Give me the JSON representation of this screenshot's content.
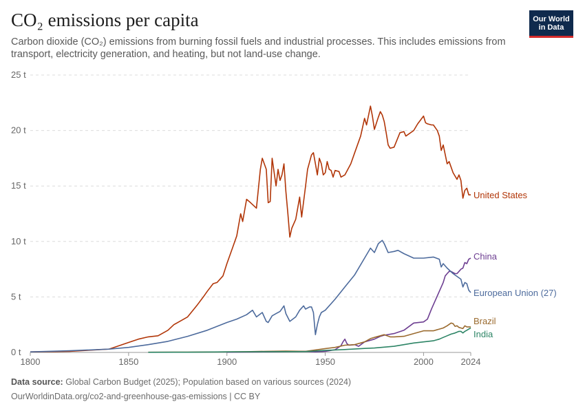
{
  "header": {
    "title": "CO₂ emissions per capita",
    "subtitle": "Carbon dioxide (CO₂) emissions from burning fossil fuels and industrial processes. This includes emissions from transport, electricity generation, and heating, but not land-use change.",
    "logo_line1": "Our World",
    "logo_line2": "in Data"
  },
  "footer": {
    "source_label": "Data source:",
    "source_text": "Global Carbon Budget (2025); Population based on various sources (2024)",
    "url": "OurWorldinData.org/co2-and-greenhouse-gas-emissions",
    "license": "| CC BY"
  },
  "chart_data": {
    "type": "line",
    "title": "CO₂ emissions per capita",
    "xlabel": "",
    "ylabel": "",
    "xlim": [
      1800,
      2024
    ],
    "ylim": [
      0,
      25
    ],
    "x_ticks": [
      "1800",
      "1850",
      "1900",
      "1950",
      "2000",
      "2024"
    ],
    "x_tick_values": [
      1800,
      1850,
      1900,
      1950,
      2000,
      2024
    ],
    "y_ticks": [
      "0 t",
      "5 t",
      "10 t",
      "15 t",
      "20 t",
      "25 t"
    ],
    "y_tick_values": [
      0,
      5,
      10,
      15,
      20,
      25
    ],
    "grid": "horizontal dashed",
    "legend": "inline labels at line ends",
    "series": [
      {
        "name": "United States",
        "color": "#b13507",
        "x": [
          1800,
          1820,
          1830,
          1840,
          1850,
          1855,
          1860,
          1865,
          1870,
          1873,
          1876,
          1880,
          1885,
          1888,
          1890,
          1893,
          1895,
          1898,
          1900,
          1903,
          1905,
          1907,
          1908,
          1910,
          1912,
          1915,
          1917,
          1918,
          1920,
          1921,
          1922,
          1923,
          1925,
          1926,
          1927,
          1928,
          1929,
          1930,
          1931,
          1932,
          1933,
          1935,
          1937,
          1938,
          1940,
          1941,
          1943,
          1944,
          1945,
          1946,
          1947,
          1948,
          1949,
          1950,
          1951,
          1952,
          1953,
          1954,
          1955,
          1957,
          1958,
          1960,
          1963,
          1965,
          1968,
          1970,
          1971,
          1973,
          1974,
          1975,
          1977,
          1978,
          1979,
          1980,
          1981,
          1982,
          1983,
          1985,
          1988,
          1990,
          1991,
          1995,
          1997,
          2000,
          2001,
          2002,
          2004,
          2005,
          2007,
          2008,
          2009,
          2010,
          2012,
          2013,
          2015,
          2017,
          2018,
          2019,
          2020,
          2021,
          2022,
          2023,
          2024
        ],
        "values": [
          0.05,
          0.1,
          0.2,
          0.3,
          0.9,
          1.2,
          1.4,
          1.5,
          2.0,
          2.5,
          2.8,
          3.2,
          4.3,
          5.0,
          5.5,
          6.2,
          6.3,
          6.9,
          8.0,
          9.5,
          10.5,
          12.5,
          11.8,
          13.8,
          13.5,
          13.0,
          16.5,
          17.5,
          16.5,
          13.5,
          13.6,
          17.5,
          15.0,
          16.5,
          15.5,
          16.0,
          17.0,
          14.5,
          12.5,
          10.4,
          11.2,
          12.0,
          14.0,
          12.2,
          15.0,
          16.5,
          17.8,
          18.0,
          17.0,
          16.0,
          17.5,
          17.0,
          16.0,
          16.2,
          17.2,
          16.5,
          16.4,
          15.8,
          16.4,
          16.3,
          15.8,
          16.0,
          17.0,
          18.0,
          19.5,
          21.1,
          20.5,
          22.2,
          21.3,
          20.1,
          21.2,
          21.7,
          21.4,
          20.8,
          19.8,
          18.7,
          18.4,
          18.5,
          19.8,
          19.9,
          19.5,
          20.0,
          20.6,
          21.3,
          20.7,
          20.6,
          20.5,
          20.5,
          20.0,
          19.5,
          18.2,
          18.7,
          17.0,
          17.2,
          16.2,
          15.6,
          16.0,
          15.5,
          13.9,
          14.6,
          14.8,
          14.2,
          14.2
        ]
      },
      {
        "name": "China",
        "color": "#6d3e91",
        "x": [
          1900,
          1910,
          1920,
          1930,
          1940,
          1945,
          1950,
          1952,
          1955,
          1958,
          1959,
          1960,
          1961,
          1962,
          1965,
          1967,
          1970,
          1975,
          1978,
          1980,
          1985,
          1990,
          1995,
          2000,
          2002,
          2004,
          2006,
          2008,
          2010,
          2011,
          2012,
          2013,
          2014,
          2015,
          2016,
          2017,
          2018,
          2019,
          2020,
          2021,
          2022,
          2023,
          2024
        ],
        "values": [
          0.02,
          0.04,
          0.05,
          0.08,
          0.1,
          0.05,
          0.1,
          0.15,
          0.25,
          0.6,
          0.95,
          1.2,
          0.8,
          0.65,
          0.7,
          0.55,
          0.95,
          1.2,
          1.45,
          1.55,
          1.7,
          2.0,
          2.65,
          2.75,
          3.0,
          3.9,
          4.7,
          5.5,
          6.3,
          6.9,
          7.1,
          7.3,
          7.3,
          7.2,
          7.1,
          7.1,
          7.3,
          7.5,
          7.6,
          8.1,
          8.0,
          8.4,
          8.5
        ]
      },
      {
        "name": "European Union (27)",
        "color": "#4c6a9c",
        "x": [
          1800,
          1820,
          1840,
          1850,
          1860,
          1870,
          1880,
          1890,
          1900,
          1905,
          1910,
          1913,
          1915,
          1918,
          1920,
          1921,
          1923,
          1925,
          1927,
          1929,
          1930,
          1932,
          1935,
          1937,
          1939,
          1940,
          1942,
          1943,
          1944,
          1945,
          1946,
          1947,
          1948,
          1950,
          1955,
          1960,
          1965,
          1970,
          1973,
          1975,
          1977,
          1979,
          1980,
          1982,
          1985,
          1987,
          1990,
          1995,
          2000,
          2005,
          2008,
          2009,
          2010,
          2012,
          2015,
          2019,
          2020,
          2021,
          2022,
          2023,
          2024
        ],
        "values": [
          0.05,
          0.15,
          0.3,
          0.45,
          0.7,
          1.0,
          1.45,
          2.0,
          2.7,
          3.0,
          3.4,
          3.8,
          3.2,
          3.6,
          2.8,
          2.7,
          3.3,
          3.5,
          3.7,
          4.2,
          3.5,
          2.8,
          3.2,
          3.8,
          4.2,
          3.9,
          4.1,
          4.1,
          3.6,
          1.6,
          2.5,
          3.2,
          3.6,
          3.8,
          4.8,
          5.9,
          7.0,
          8.5,
          9.4,
          9.0,
          9.8,
          10.1,
          9.8,
          9.0,
          9.1,
          9.2,
          8.9,
          8.5,
          8.5,
          8.6,
          8.4,
          7.7,
          8.0,
          7.6,
          7.1,
          6.6,
          5.9,
          6.3,
          6.2,
          5.6,
          5.4
        ]
      },
      {
        "name": "Brazil",
        "color": "#9a6a2e",
        "x": [
          1860,
          1880,
          1900,
          1910,
          1920,
          1930,
          1940,
          1950,
          1955,
          1960,
          1965,
          1970,
          1973,
          1975,
          1980,
          1983,
          1985,
          1990,
          1995,
          2000,
          2005,
          2008,
          2010,
          2012,
          2014,
          2015,
          2016,
          2017,
          2018,
          2019,
          2020,
          2021,
          2022,
          2023,
          2024
        ],
        "values": [
          0.02,
          0.03,
          0.05,
          0.07,
          0.1,
          0.12,
          0.1,
          0.35,
          0.45,
          0.65,
          0.7,
          0.95,
          1.25,
          1.35,
          1.6,
          1.4,
          1.4,
          1.45,
          1.7,
          1.95,
          1.95,
          2.1,
          2.2,
          2.4,
          2.65,
          2.6,
          2.35,
          2.4,
          2.25,
          2.2,
          2.15,
          2.4,
          2.3,
          2.3,
          2.3
        ]
      },
      {
        "name": "India",
        "color": "#2c8465",
        "x": [
          1860,
          1880,
          1900,
          1920,
          1940,
          1950,
          1960,
          1970,
          1975,
          1980,
          1985,
          1990,
          1995,
          2000,
          2005,
          2008,
          2010,
          2012,
          2014,
          2016,
          2018,
          2019,
          2020,
          2021,
          2022,
          2023,
          2024
        ],
        "values": [
          0.01,
          0.02,
          0.05,
          0.07,
          0.08,
          0.18,
          0.26,
          0.36,
          0.4,
          0.48,
          0.55,
          0.7,
          0.85,
          0.95,
          1.05,
          1.2,
          1.35,
          1.5,
          1.65,
          1.75,
          1.9,
          1.9,
          1.75,
          1.9,
          2.0,
          2.1,
          2.2
        ]
      }
    ]
  }
}
